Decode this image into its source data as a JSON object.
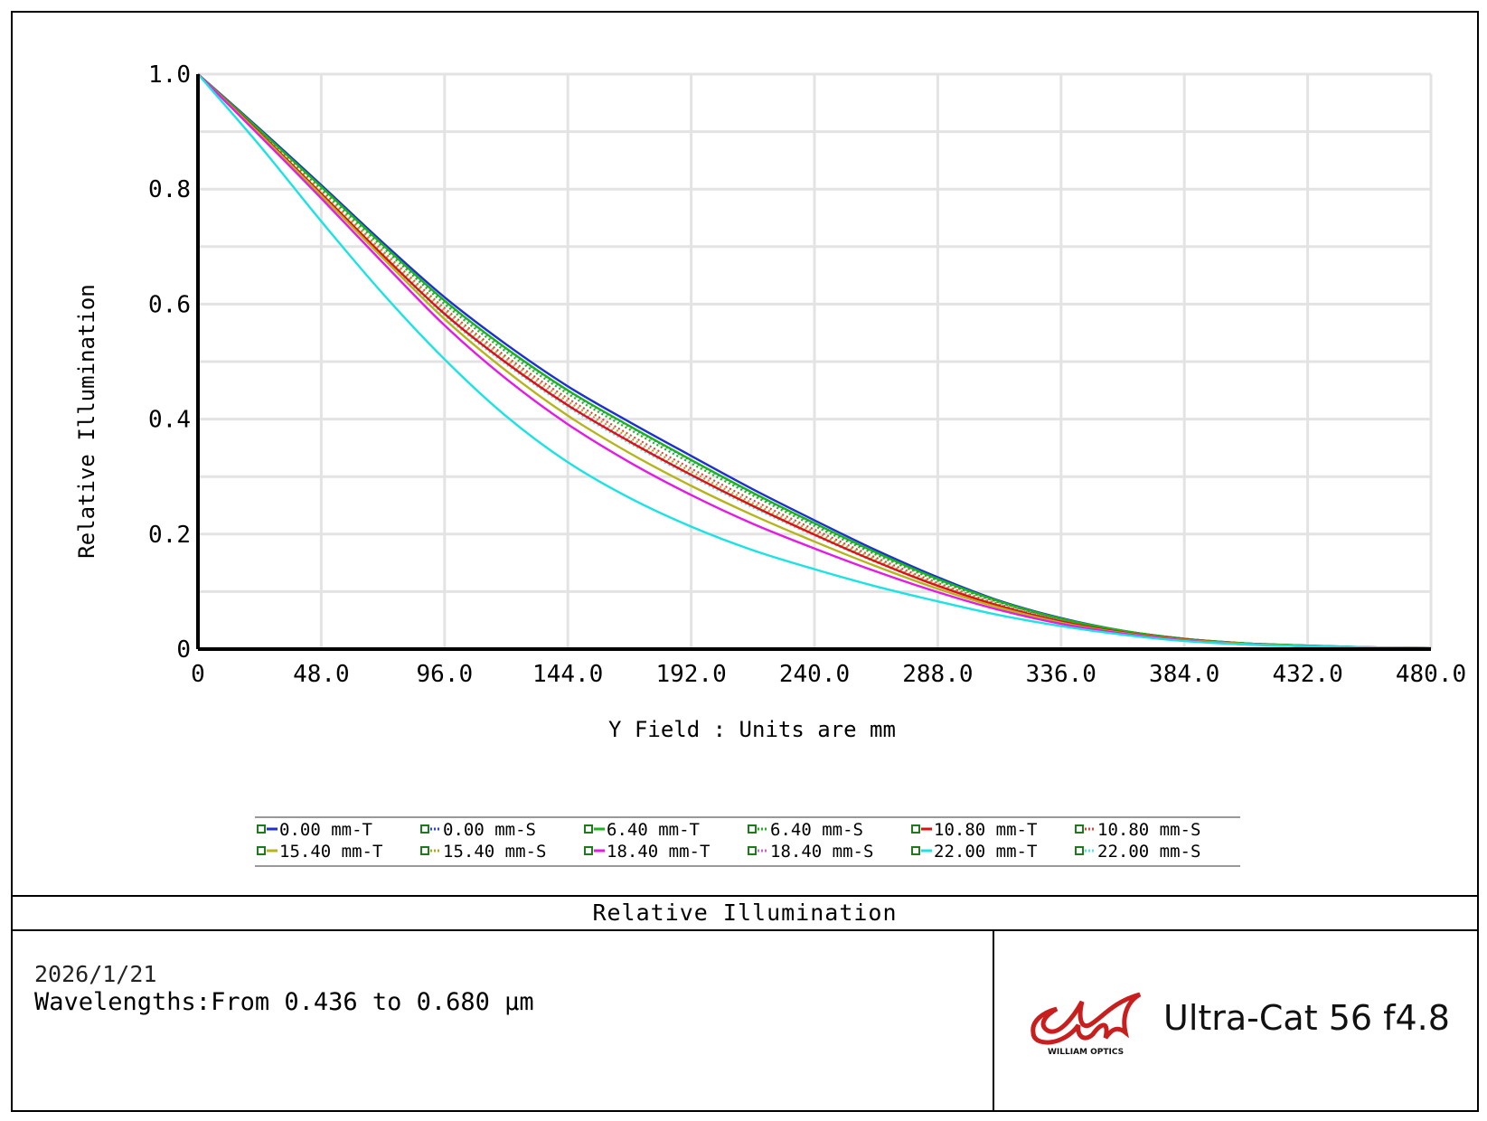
{
  "chart_data": {
    "type": "line",
    "title": "Relative Illumination",
    "xlabel": "Y Field : Units are mm",
    "ylabel": "Relative Illumination",
    "xlim": [
      0,
      480
    ],
    "ylim": [
      0,
      1.0
    ],
    "x_ticks": [
      "0",
      "48.0",
      "96.0",
      "144.0",
      "192.0",
      "240.0",
      "288.0",
      "336.0",
      "384.0",
      "432.0",
      "480.0"
    ],
    "y_ticks": [
      "0",
      "0.2",
      "0.4",
      "0.6",
      "0.8",
      "1.0"
    ],
    "grid": true,
    "legend_position": "bottom",
    "x": [
      0,
      24,
      48,
      72,
      96,
      120,
      144,
      168,
      192,
      216,
      240,
      264,
      288,
      312,
      336,
      360,
      384,
      408,
      432,
      456,
      480
    ],
    "series": [
      {
        "name": "0.00 mm-T",
        "color": "#1f2fd0",
        "dash": "solid",
        "values": [
          1.0,
          0.905,
          0.807,
          0.707,
          0.612,
          0.53,
          0.457,
          0.395,
          0.336,
          0.278,
          0.224,
          0.172,
          0.125,
          0.084,
          0.054,
          0.032,
          0.018,
          0.01,
          0.006,
          0.003,
          0.002
        ]
      },
      {
        "name": "0.00 mm-S",
        "color": "#2f3fd8",
        "dash": "dotted",
        "values": [
          1.0,
          0.903,
          0.803,
          0.702,
          0.605,
          0.522,
          0.449,
          0.387,
          0.328,
          0.271,
          0.218,
          0.167,
          0.121,
          0.082,
          0.052,
          0.031,
          0.018,
          0.01,
          0.006,
          0.003,
          0.002
        ]
      },
      {
        "name": "6.40 mm-T",
        "color": "#1bb51b",
        "dash": "solid",
        "values": [
          1.0,
          0.903,
          0.804,
          0.703,
          0.606,
          0.523,
          0.45,
          0.388,
          0.329,
          0.272,
          0.219,
          0.168,
          0.122,
          0.083,
          0.053,
          0.032,
          0.018,
          0.01,
          0.006,
          0.003,
          0.002
        ]
      },
      {
        "name": "6.40 mm-S",
        "color": "#1bb51b",
        "dash": "dotted",
        "values": [
          1.0,
          0.901,
          0.8,
          0.698,
          0.6,
          0.517,
          0.444,
          0.382,
          0.323,
          0.267,
          0.214,
          0.164,
          0.119,
          0.081,
          0.052,
          0.031,
          0.018,
          0.01,
          0.006,
          0.003,
          0.002
        ]
      },
      {
        "name": "10.80 mm-T",
        "color": "#dd1111",
        "dash": "solid",
        "values": [
          1.0,
          0.898,
          0.792,
          0.685,
          0.583,
          0.498,
          0.424,
          0.361,
          0.303,
          0.249,
          0.199,
          0.152,
          0.11,
          0.075,
          0.048,
          0.029,
          0.017,
          0.009,
          0.005,
          0.003,
          0.002
        ]
      },
      {
        "name": "10.80 mm-S",
        "color": "#dd4444",
        "dash": "dotted",
        "values": [
          1.0,
          0.9,
          0.796,
          0.692,
          0.593,
          0.509,
          0.436,
          0.373,
          0.314,
          0.259,
          0.208,
          0.159,
          0.115,
          0.078,
          0.05,
          0.03,
          0.017,
          0.009,
          0.005,
          0.003,
          0.002
        ]
      },
      {
        "name": "15.40 mm-T",
        "color": "#b5b51b",
        "dash": "solid",
        "values": [
          1.0,
          0.896,
          0.789,
          0.68,
          0.574,
          0.484,
          0.406,
          0.341,
          0.284,
          0.233,
          0.187,
          0.144,
          0.105,
          0.072,
          0.046,
          0.028,
          0.016,
          0.009,
          0.005,
          0.003,
          0.002
        ]
      },
      {
        "name": "15.40 mm-S",
        "color": "#b5a51b",
        "dash": "dotted",
        "values": [
          1.0,
          0.899,
          0.795,
          0.69,
          0.59,
          0.505,
          0.431,
          0.368,
          0.309,
          0.254,
          0.204,
          0.156,
          0.113,
          0.077,
          0.049,
          0.029,
          0.017,
          0.009,
          0.005,
          0.003,
          0.002
        ]
      },
      {
        "name": "18.40 mm-T",
        "color": "#e31be3",
        "dash": "solid",
        "values": [
          1.0,
          0.893,
          0.784,
          0.672,
          0.563,
          0.47,
          0.391,
          0.325,
          0.268,
          0.218,
          0.175,
          0.135,
          0.099,
          0.068,
          0.044,
          0.027,
          0.015,
          0.008,
          0.005,
          0.003,
          0.002
        ]
      },
      {
        "name": "18.40 mm-S",
        "color": "#d060d0",
        "dash": "dotted",
        "values": [
          1.0,
          0.898,
          0.792,
          0.686,
          0.585,
          0.5,
          0.426,
          0.363,
          0.304,
          0.25,
          0.2,
          0.153,
          0.111,
          0.076,
          0.049,
          0.029,
          0.017,
          0.009,
          0.005,
          0.003,
          0.002
        ]
      },
      {
        "name": "22.00 mm-T",
        "color": "#1be3e3",
        "dash": "solid",
        "values": [
          1.0,
          0.876,
          0.744,
          0.618,
          0.504,
          0.405,
          0.325,
          0.263,
          0.213,
          0.172,
          0.139,
          0.109,
          0.083,
          0.059,
          0.04,
          0.025,
          0.014,
          0.008,
          0.005,
          0.003,
          0.002
        ]
      },
      {
        "name": "22.00 mm-S",
        "color": "#55e3e3",
        "dash": "dotted",
        "values": [
          1.0,
          0.897,
          0.79,
          0.683,
          0.58,
          0.495,
          0.421,
          0.358,
          0.3,
          0.246,
          0.197,
          0.151,
          0.11,
          0.075,
          0.048,
          0.029,
          0.016,
          0.009,
          0.005,
          0.003,
          0.002
        ]
      }
    ]
  },
  "footer": {
    "title": "Relative Illumination",
    "date": "2026/1/21",
    "wavelengths": "Wavelengths:From 0.436 to 0.680 μm",
    "brand_logo_text": "WILLIAM OPTICS",
    "product_name": "Ultra-Cat 56 f4.8",
    "brand_color": "#c81e1e"
  }
}
